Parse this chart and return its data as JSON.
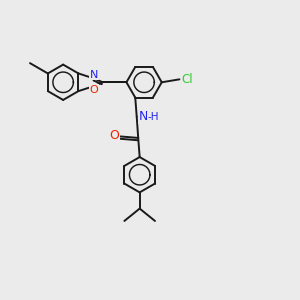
{
  "bg_color": "#ebebeb",
  "bond_color": "#1a1a1a",
  "bond_width": 1.4,
  "atom_colors": {
    "N": "#2222ee",
    "O": "#ee2200",
    "Cl": "#33cc33"
  }
}
